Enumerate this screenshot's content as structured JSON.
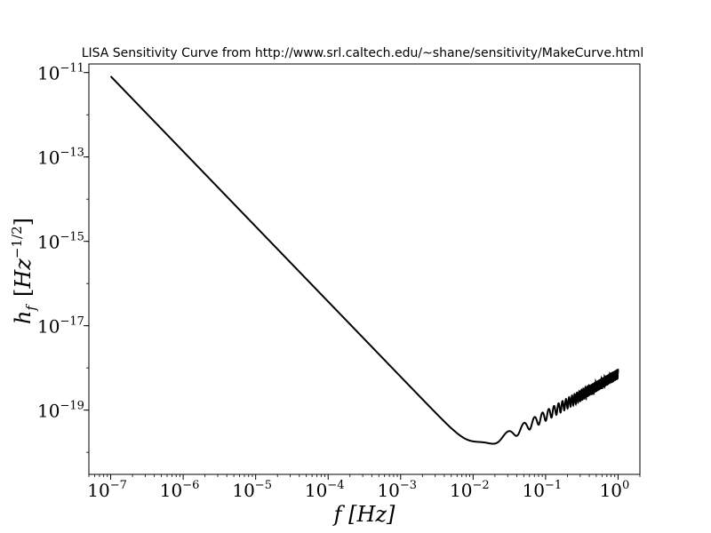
{
  "chart_data": {
    "type": "line",
    "title": "LISA Sensitivity Curve from http://www.srl.caltech.edu/~shane/sensitivity/MakeCurve.html",
    "xlabel": "f [Hz]",
    "ylabel": "h_f [Hz^{-1/2}]",
    "xscale": "log",
    "yscale": "log",
    "xlim": [
      5e-08,
      2.0
    ],
    "ylim": [
      3e-21,
      1.6e-11
    ],
    "grid": false,
    "x_ticks": [
      {
        "value": 1e-07,
        "base": "10",
        "exp": "−7"
      },
      {
        "value": 1e-06,
        "base": "10",
        "exp": "−6"
      },
      {
        "value": 1e-05,
        "base": "10",
        "exp": "−5"
      },
      {
        "value": 0.0001,
        "base": "10",
        "exp": "−4"
      },
      {
        "value": 0.001,
        "base": "10",
        "exp": "−3"
      },
      {
        "value": 0.01,
        "base": "10",
        "exp": "−2"
      },
      {
        "value": 0.1,
        "base": "10",
        "exp": "−1"
      },
      {
        "value": 1.0,
        "base": "10",
        "exp": "0"
      }
    ],
    "y_ticks": [
      {
        "value": 1e-11,
        "base": "10",
        "exp": "−11"
      },
      {
        "value": 1e-13,
        "base": "10",
        "exp": "−13"
      },
      {
        "value": 1e-15,
        "base": "10",
        "exp": "−15"
      },
      {
        "value": 1e-17,
        "base": "10",
        "exp": "−17"
      },
      {
        "value": 1e-19,
        "base": "10",
        "exp": "−19"
      }
    ],
    "series": [
      {
        "color": "#000000",
        "x": [
          1e-07,
          1e-06,
          1e-05,
          0.0001,
          0.001,
          0.002,
          0.003,
          0.005,
          0.008,
          0.012,
          0.02,
          0.028,
          0.035,
          0.043,
          0.05,
          0.06,
          0.07,
          0.08,
          0.1,
          0.2,
          0.5,
          1.0
        ],
        "y": [
          8e-12,
          1.3e-13,
          2.2e-15,
          3.7e-17,
          6.2e-19,
          1e-19,
          2.2e-20,
          1.2e-20,
          1.2e-20,
          1.4e-20,
          2.3e-20,
          4.5e-20,
          3.3e-20,
          2.8e-20,
          3.8e-20,
          5.5e-20,
          4.7e-20,
          7.5e-20,
          1e-19,
          2e-19,
          4.5e-19,
          7.8e-19
        ],
        "oscillation_note": "sensitivity oscillates above ~2e-2 Hz with increasing frequency density up to 1 Hz"
      }
    ]
  }
}
